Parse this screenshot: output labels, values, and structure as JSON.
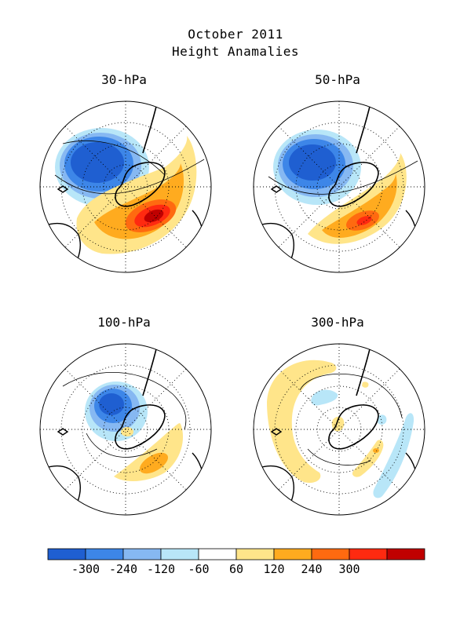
{
  "title": "October 2011",
  "subtitle": "Height Anamalies",
  "colors": {
    "c1": "#1f5fd1",
    "c2": "#3d86e8",
    "c3": "#86b8f2",
    "c4": "#b8e6f8",
    "c5": "#ffffff",
    "c6": "#ffe58a",
    "c7": "#ffab1f",
    "c8": "#ff6a10",
    "c9": "#ff2a10",
    "c10": "#c00000"
  },
  "panels": [
    {
      "label": "30-hPa"
    },
    {
      "label": "50-hPa"
    },
    {
      "label": "100-hPa"
    },
    {
      "label": "300-hPa"
    }
  ],
  "colorbar": {
    "labels": [
      "-300",
      "-240",
      "-120",
      "-60",
      "60",
      "120",
      "240",
      "300"
    ]
  }
}
